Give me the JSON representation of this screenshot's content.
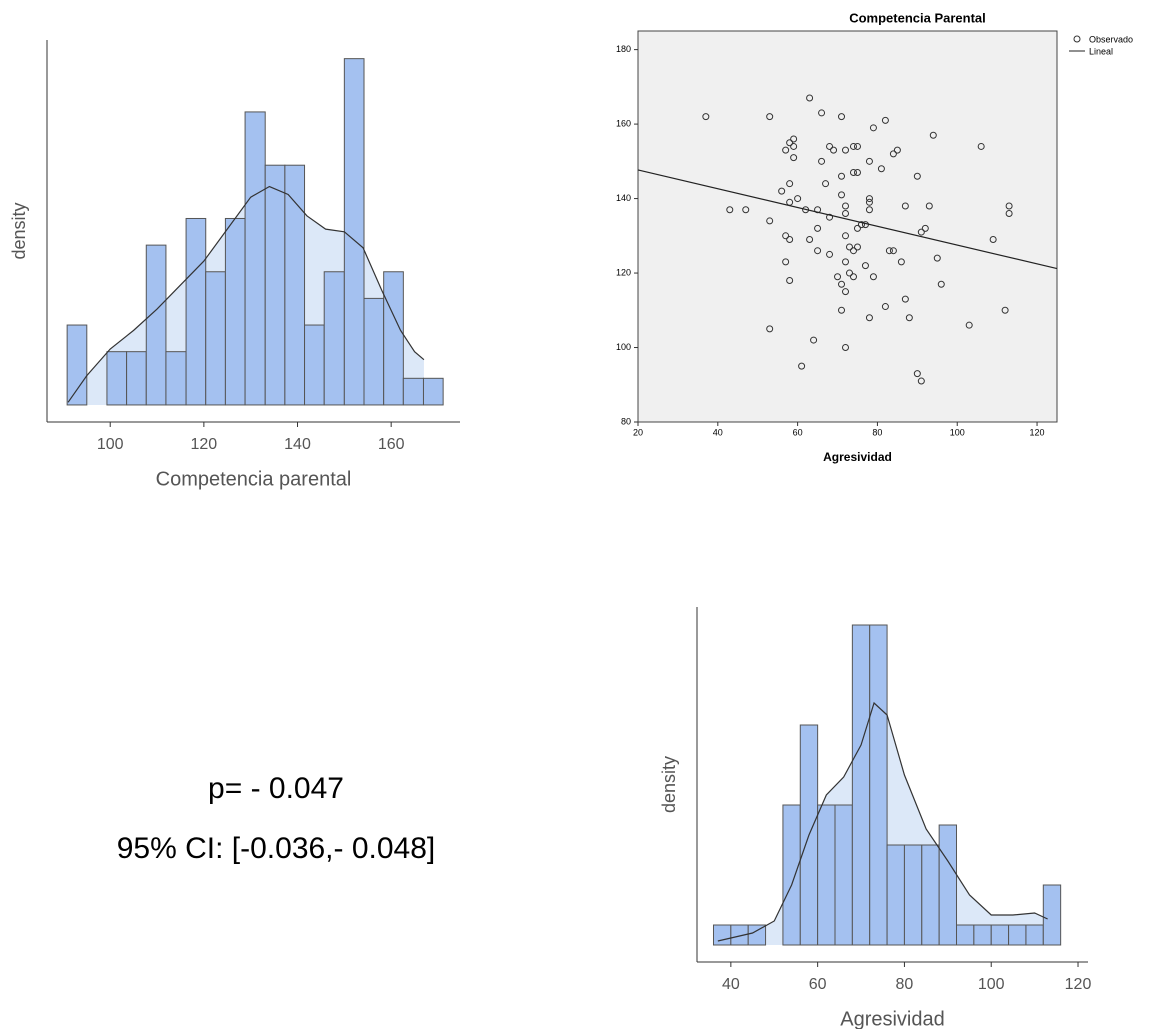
{
  "chart_data": [
    {
      "type": "histogram",
      "x_label": "Competencia parental",
      "y_label": "density",
      "bins": [
        90.8,
        95.0,
        99.3,
        103.5,
        107.7,
        111.9,
        116.2,
        120.4,
        124.6,
        128.8,
        133.1,
        137.3,
        141.5,
        145.7,
        150.0,
        154.2,
        158.4,
        162.6,
        166.9,
        171.1
      ],
      "values": [
        3,
        0,
        2,
        2,
        6,
        2,
        7,
        5,
        7,
        11,
        9,
        9,
        3,
        5,
        13,
        4,
        5,
        1,
        1
      ],
      "color": "#a4c1f0",
      "curve_color": "#dce8f8",
      "density_curve": {
        "x": [
          91,
          95,
          100,
          105,
          110,
          115,
          120,
          125,
          130,
          134,
          138,
          142,
          146,
          150,
          154,
          158,
          162,
          165,
          167
        ],
        "values": [
          0.1,
          1.1,
          2.1,
          2.8,
          3.6,
          4.5,
          5.4,
          6.6,
          7.8,
          8.2,
          7.9,
          7.1,
          6.6,
          6.5,
          5.9,
          4.3,
          2.8,
          2.0,
          1.7
        ]
      },
      "xlim": [
        86.5,
        174.7
      ],
      "ylim": [
        -0.64,
        13.7
      ],
      "xticks": [
        100,
        120,
        140,
        160
      ]
    },
    {
      "type": "scatter",
      "title": "Competencia Parental",
      "x_label": "Agresividad",
      "series": [
        {
          "name": "Observado",
          "color": "#333333",
          "x": [
            37,
            53,
            63,
            66,
            71,
            82,
            79,
            94,
            59,
            58,
            59,
            57,
            68,
            69,
            72,
            74,
            75,
            84,
            85,
            106,
            59,
            66,
            78,
            81,
            74,
            75,
            71,
            90,
            58,
            67,
            56,
            71,
            60,
            78,
            58,
            78,
            72,
            87,
            93,
            113,
            43,
            47,
            62,
            65,
            78,
            72,
            113,
            53,
            68,
            76,
            77,
            75,
            65,
            92,
            91,
            57,
            72,
            58,
            63,
            109,
            73,
            75,
            65,
            74,
            83,
            84,
            68,
            95,
            57,
            72,
            86,
            77,
            73,
            74,
            70,
            79,
            58,
            96,
            71,
            72,
            87,
            82,
            71,
            112,
            78,
            88,
            103,
            53,
            64,
            72,
            61,
            90,
            91
          ],
          "values": [
            162,
            162,
            167,
            163,
            162,
            161,
            159,
            157,
            156,
            155,
            154,
            153,
            154,
            153,
            153,
            154,
            154,
            152,
            153,
            154,
            151,
            150,
            150,
            148,
            147,
            147,
            146,
            146,
            144,
            144,
            142,
            141,
            140,
            140,
            139,
            139,
            138,
            138,
            138,
            138,
            137,
            137,
            137,
            137,
            137,
            136,
            136,
            134,
            135,
            133,
            133,
            132,
            132,
            132,
            131,
            130,
            130,
            129,
            129,
            129,
            127,
            127,
            126,
            126,
            126,
            126,
            125,
            124,
            123,
            123,
            123,
            122,
            120,
            119,
            119,
            119,
            118,
            117,
            117,
            115,
            113,
            111,
            110,
            110,
            108,
            108,
            106,
            105,
            102,
            100,
            95,
            93,
            91
          ]
        },
        {
          "name": "Lineal",
          "color": "#222222",
          "x": [
            20,
            125
          ],
          "values": [
            147.7,
            121.2
          ]
        }
      ],
      "xlim": [
        20,
        125
      ],
      "ylim": [
        80,
        185
      ],
      "xticks": [
        20,
        40,
        60,
        80,
        100,
        120
      ],
      "yticks": [
        80,
        100,
        120,
        140,
        160,
        180
      ]
    },
    {
      "type": "histogram",
      "x_label": "Agresividad",
      "y_label": "density",
      "bins": [
        36,
        40,
        44,
        48,
        52,
        56,
        60,
        64,
        68,
        72,
        76,
        80,
        84,
        88,
        92,
        96,
        100,
        104,
        108,
        112,
        116
      ],
      "values": [
        1,
        1,
        1,
        0,
        7,
        11,
        7,
        7,
        16,
        16,
        5,
        5,
        5,
        6,
        1,
        1,
        1,
        1,
        1,
        3
      ],
      "color": "#a4c1f0",
      "curve_color": "#dce8f8",
      "density_curve": {
        "x": [
          37,
          45,
          50,
          54,
          58,
          62,
          66,
          70,
          73,
          76,
          80,
          85,
          90,
          95,
          100,
          105,
          110,
          113
        ],
        "values": [
          0.2,
          0.6,
          1.2,
          3,
          5.5,
          7.5,
          8.4,
          10,
          12.1,
          11.5,
          8.5,
          5.8,
          4.2,
          2.5,
          1.5,
          1.5,
          1.6,
          1.3
        ]
      },
      "xlim": [
        32.2,
        122.3
      ],
      "ylim": [
        -0.85,
        16.9
      ],
      "xticks": [
        40,
        60,
        80,
        100,
        120
      ]
    }
  ],
  "annotation": {
    "p_value": "p= - 0.047",
    "ci": "95% CI: [-0.036,- 0.048]"
  }
}
